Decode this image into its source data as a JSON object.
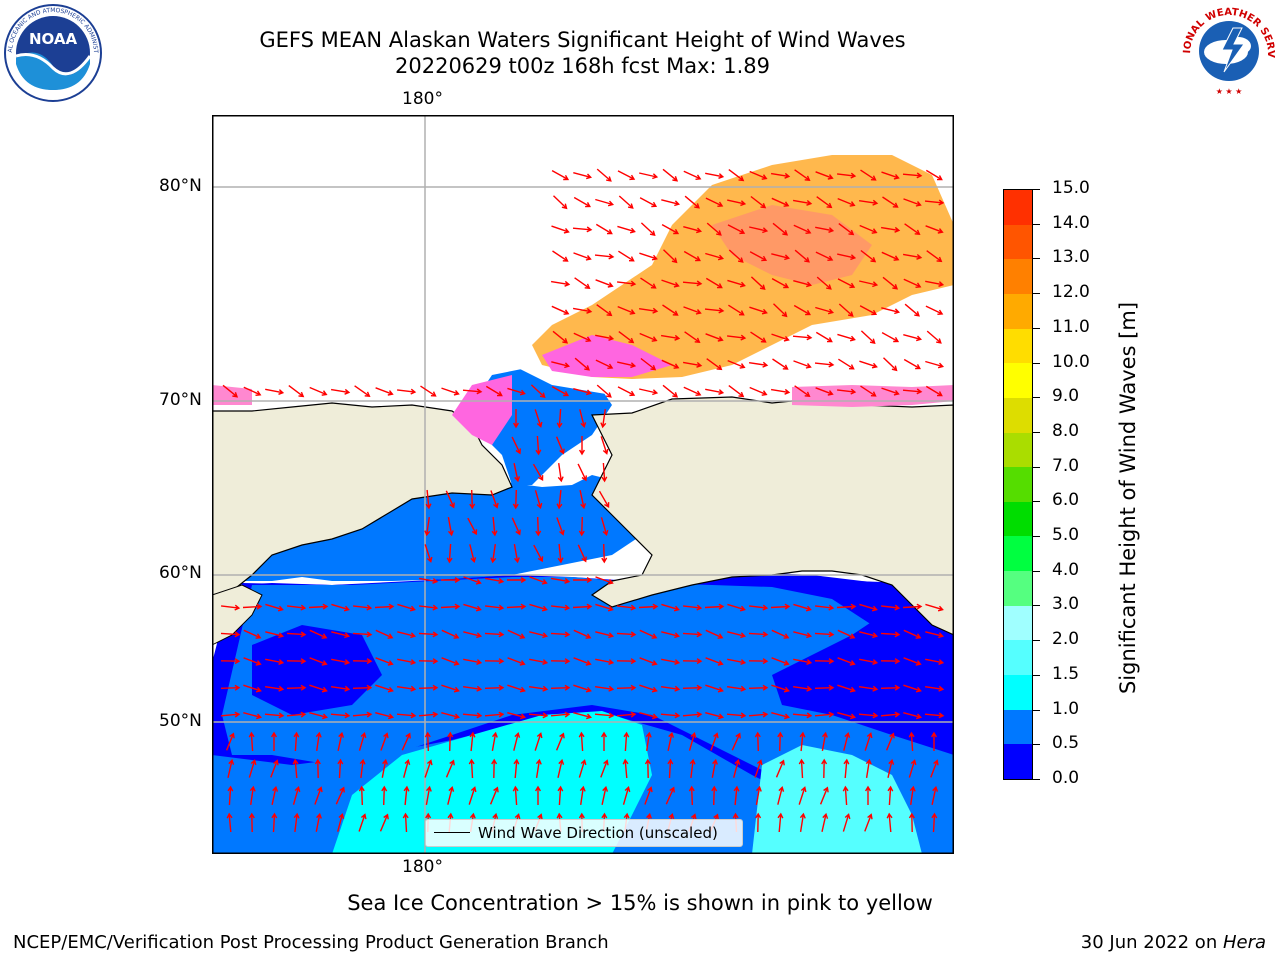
{
  "title_line1": "GEFS MEAN Alaskan Waters Significant Height of Wind Waves",
  "title_line2": "20220629 t00z 168h fcst   Max: 1.89",
  "noaa_logo_icon": "noaa-logo",
  "nws_logo_icon": "nws-logo",
  "map": {
    "lon_label_top": "180°",
    "lon_label_bottom": "180°",
    "lat_labels": [
      {
        "label": "80°N"
      },
      {
        "label": "70°N"
      },
      {
        "label": "60°N"
      },
      {
        "label": "50°N"
      }
    ],
    "legend_text": "Wind Wave Direction (unscaled)",
    "colors": {
      "land": "#efedd9",
      "arrows": "#ff0000",
      "grid": "#b0b0b0"
    }
  },
  "colorbar": {
    "label": "Significant Height of Wind Waves [m]",
    "ticks": [
      "15.0",
      "14.0",
      "13.0",
      "12.0",
      "11.0",
      "10.0",
      "9.0",
      "8.0",
      "7.0",
      "6.0",
      "5.0",
      "4.0",
      "3.0",
      "2.0",
      "1.5",
      "1.0",
      "0.5",
      "0.0"
    ],
    "colors_bottom_to_top": [
      "#0000ff",
      "#0078ff",
      "#00ffff",
      "#55ffff",
      "#a0ffff",
      "#55ff80",
      "#00ff40",
      "#00dd00",
      "#55dd00",
      "#aadd00",
      "#dddd00",
      "#ffff00",
      "#ffdd00",
      "#ffaa00",
      "#ff8000",
      "#ff5500",
      "#ff3000",
      "#ff0000"
    ]
  },
  "sea_ice_note": "Sea Ice Concentration > 15% is shown in pink to yellow",
  "footer_left": "NCEP/EMC/Verification Post Processing Product Generation Branch",
  "footer_right_prefix": "30 Jun 2022 on ",
  "footer_right_machine": "Hera"
}
